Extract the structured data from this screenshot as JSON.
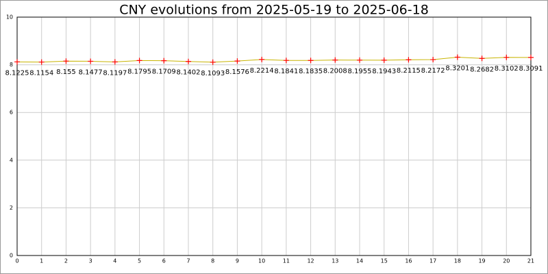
{
  "chart_data": {
    "type": "line",
    "title": "CNY evolutions from 2025-05-19 to 2025-06-18",
    "x": [
      0,
      1,
      2,
      3,
      4,
      5,
      6,
      7,
      8,
      9,
      10,
      11,
      12,
      13,
      14,
      15,
      16,
      17,
      18,
      19,
      20,
      21
    ],
    "values": [
      8.1225,
      8.1154,
      8.155,
      8.1477,
      8.1197,
      8.1795,
      8.1709,
      8.1402,
      8.1093,
      8.1576,
      8.2214,
      8.1841,
      8.1835,
      8.2008,
      8.1955,
      8.1943,
      8.2115,
      8.2172,
      8.3201,
      8.2682,
      8.3102,
      8.3091
    ],
    "color": "#c8b400",
    "marker_color": "#ff0000",
    "xlim": [
      0,
      21
    ],
    "xticks": [
      0,
      1,
      2,
      3,
      4,
      5,
      6,
      7,
      8,
      9,
      10,
      11,
      12,
      13,
      14,
      15,
      16,
      17,
      18,
      19,
      20,
      21
    ],
    "ylim": [
      0,
      10
    ],
    "yticks": [
      0,
      2,
      4,
      6,
      8,
      10
    ],
    "grid": true
  }
}
